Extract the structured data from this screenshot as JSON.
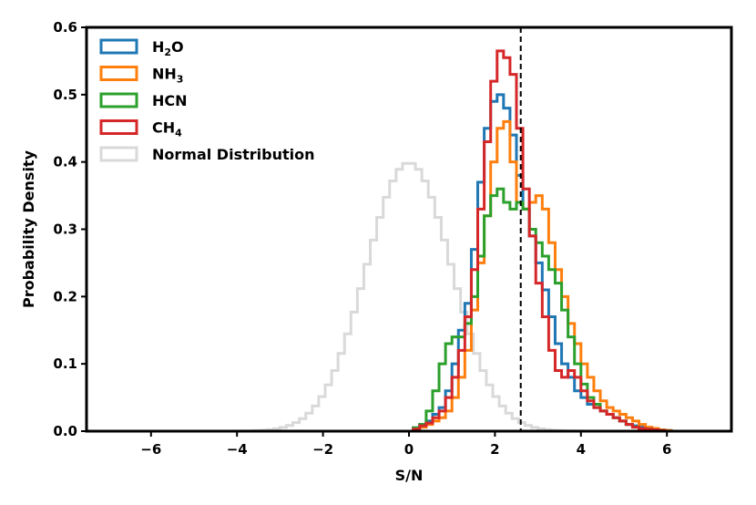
{
  "chart_data": {
    "type": "histogram",
    "xlabel": "S/N",
    "ylabel": "Probability Density",
    "xlim": [
      -7.5,
      7.5
    ],
    "ylim": [
      0,
      0.6
    ],
    "xticks": [
      -6,
      -4,
      -2,
      0,
      2,
      4,
      6
    ],
    "xtick_labels": [
      "−6",
      "−4",
      "−2",
      "0",
      "2",
      "4",
      "6"
    ],
    "yticks": [
      0.0,
      0.1,
      0.2,
      0.3,
      0.4,
      0.5,
      0.6
    ],
    "ytick_labels": [
      "0.0",
      "0.1",
      "0.2",
      "0.3",
      "0.4",
      "0.5",
      "0.6"
    ],
    "vline": {
      "x": 2.6,
      "style": "dashed",
      "color": "#000000"
    },
    "legend_position": "upper-left",
    "bin_width": 0.15,
    "normal_bin_width": 0.15,
    "series": [
      {
        "name": "H2O",
        "label_main": "H",
        "label_sub": "2",
        "label_tail": "O",
        "color": "#1f77b4",
        "start": 0.1,
        "values": [
          0.005,
          0.01,
          0.015,
          0.025,
          0.035,
          0.06,
          0.1,
          0.15,
          0.19,
          0.27,
          0.37,
          0.45,
          0.49,
          0.5,
          0.48,
          0.44,
          0.38,
          0.33,
          0.29,
          0.25,
          0.21,
          0.17,
          0.13,
          0.1,
          0.08,
          0.06,
          0.05,
          0.04,
          0.035,
          0.03,
          0.025,
          0.02,
          0.015,
          0.01,
          0.008,
          0.006,
          0.005,
          0.003,
          0.002,
          0.001
        ]
      },
      {
        "name": "NH3",
        "label_main": "NH",
        "label_sub": "3",
        "label_tail": "",
        "color": "#ff7f0e",
        "start": 0.1,
        "values": [
          0.003,
          0.006,
          0.01,
          0.015,
          0.02,
          0.03,
          0.05,
          0.08,
          0.12,
          0.18,
          0.25,
          0.32,
          0.4,
          0.45,
          0.46,
          0.4,
          0.34,
          0.33,
          0.34,
          0.35,
          0.33,
          0.28,
          0.24,
          0.2,
          0.16,
          0.13,
          0.1,
          0.08,
          0.06,
          0.045,
          0.035,
          0.03,
          0.025,
          0.02,
          0.015,
          0.01,
          0.006,
          0.004,
          0.002,
          0.001
        ]
      },
      {
        "name": "HCN",
        "label_main": "HCN",
        "label_sub": "",
        "label_tail": "",
        "color": "#2ca02c",
        "start": 0.1,
        "values": [
          0.005,
          0.01,
          0.03,
          0.06,
          0.1,
          0.13,
          0.14,
          0.14,
          0.16,
          0.2,
          0.26,
          0.32,
          0.35,
          0.36,
          0.34,
          0.33,
          0.34,
          0.33,
          0.3,
          0.28,
          0.26,
          0.24,
          0.22,
          0.18,
          0.14,
          0.1,
          0.07,
          0.05,
          0.04,
          0.03,
          0.025,
          0.02,
          0.015,
          0.01,
          0.006,
          0.004,
          0.003,
          0.002,
          0.001,
          0.0
        ]
      },
      {
        "name": "CH4",
        "label_main": "CH",
        "label_sub": "4",
        "label_tail": "",
        "color": "#d62728",
        "start": 0.1,
        "values": [
          0.003,
          0.008,
          0.012,
          0.02,
          0.03,
          0.05,
          0.08,
          0.12,
          0.17,
          0.24,
          0.33,
          0.43,
          0.52,
          0.565,
          0.555,
          0.53,
          0.45,
          0.36,
          0.29,
          0.22,
          0.17,
          0.12,
          0.09,
          0.08,
          0.09,
          0.08,
          0.06,
          0.045,
          0.035,
          0.03,
          0.025,
          0.02,
          0.015,
          0.01,
          0.006,
          0.004,
          0.003,
          0.002,
          0.001,
          0.0
        ]
      },
      {
        "name": "Normal Distribution",
        "label_main": "Normal Distribution",
        "label_sub": "",
        "label_tail": "",
        "color": "#d9d9d9",
        "gaussian": true,
        "mean": 0,
        "std": 1,
        "range": [
          -4.5,
          4.5
        ]
      }
    ]
  }
}
